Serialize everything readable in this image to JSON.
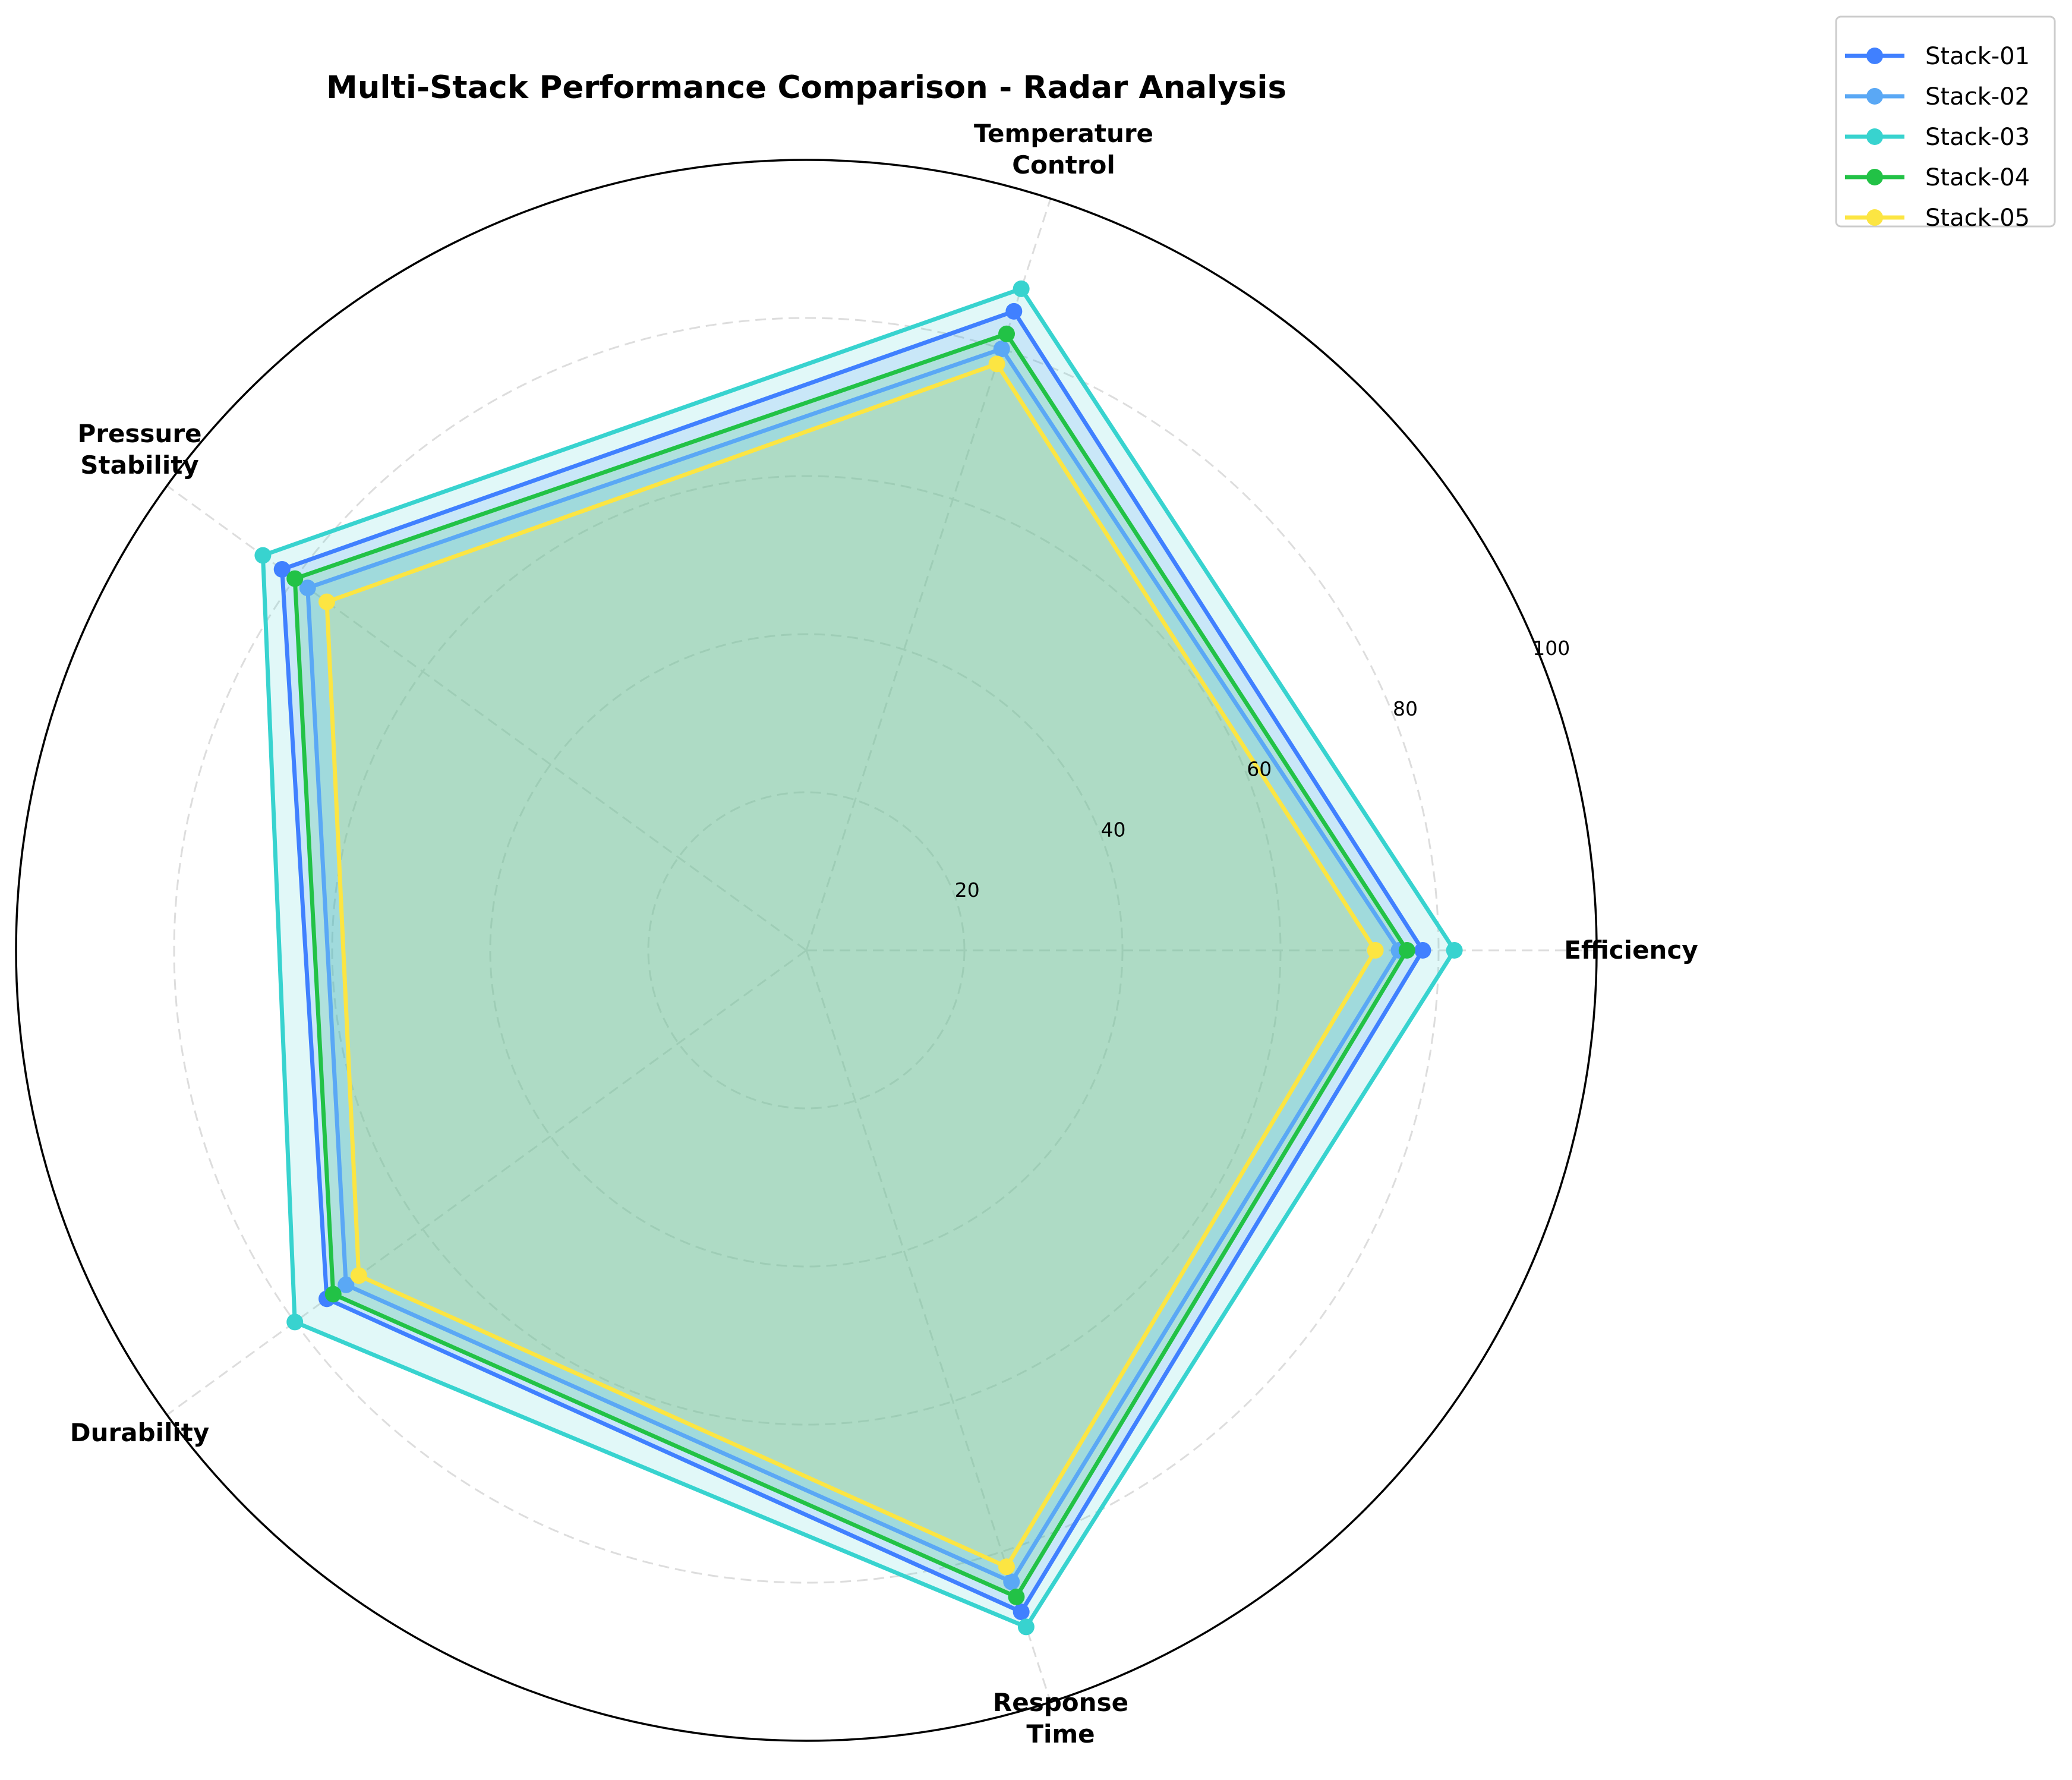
{
  "chart_data": {
    "type": "radar",
    "title": "Multi-Stack Performance Comparison - Radar Analysis",
    "categories": [
      "Efficiency",
      "Temperature\nControl",
      "Pressure\nStability",
      "Durability",
      "Response\nTime"
    ],
    "rlim": [
      0,
      100
    ],
    "rticks": [
      20,
      40,
      60,
      80,
      100
    ],
    "grid": true,
    "legend_position": "upper right (outside)",
    "series": [
      {
        "name": "Stack-01",
        "color": "#4080ff",
        "values": [
          78,
          85,
          82,
          75,
          88
        ]
      },
      {
        "name": "Stack-02",
        "color": "#5aa8f5",
        "values": [
          75,
          80,
          78,
          72,
          84
        ]
      },
      {
        "name": "Stack-03",
        "color": "#38d3cf",
        "values": [
          82,
          88,
          85,
          80,
          90
        ]
      },
      {
        "name": "Stack-04",
        "color": "#22c246",
        "values": [
          76,
          82,
          80,
          74,
          86
        ]
      },
      {
        "name": "Stack-05",
        "color": "#fce542",
        "values": [
          72,
          78,
          75,
          70,
          82
        ]
      }
    ]
  }
}
